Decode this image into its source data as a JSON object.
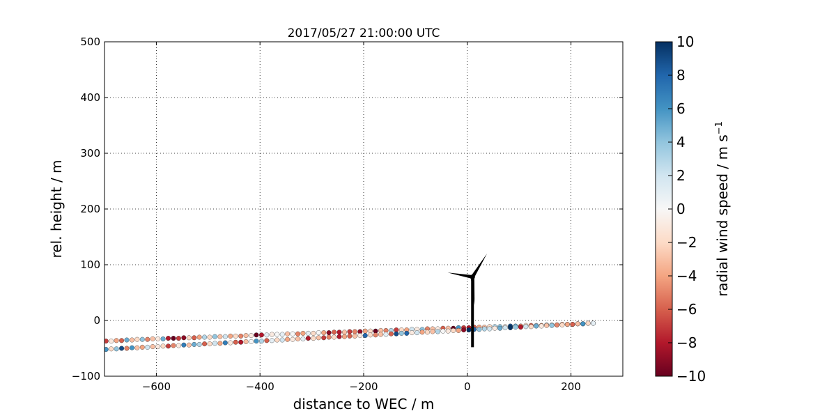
{
  "chart_data": {
    "type": "scatter",
    "title": "2017/05/27 21:00:00 UTC",
    "xlabel": "distance to WEC / m",
    "ylabel": "rel. height / m",
    "xlim": [
      -700,
      300
    ],
    "ylim": [
      -100,
      500
    ],
    "xticks": [
      -600,
      -400,
      -200,
      0,
      200
    ],
    "yticks": [
      -100,
      0,
      100,
      200,
      300,
      400,
      500
    ],
    "xtick_labels": [
      "−600",
      "−400",
      "−200",
      "0",
      "200"
    ],
    "ytick_labels": [
      "−100",
      "0",
      "100",
      "200",
      "300",
      "400",
      "500"
    ],
    "grid": true,
    "colorbar": {
      "label": "radial wind speed / m s",
      "label_superscript": "−1",
      "vmin": -10,
      "vmax": 10,
      "ticks": [
        10,
        8,
        6,
        4,
        2,
        0,
        -2,
        -4,
        -6,
        -8,
        -10
      ],
      "tick_labels": [
        "10",
        "8",
        "6",
        "4",
        "2",
        "0",
        "−2",
        "−4",
        "−6",
        "−8",
        "−10"
      ],
      "colormap": "RdBu"
    },
    "series": [
      {
        "points": [
          [
            -697,
            -37,
            -7
          ],
          [
            -687,
            -37,
            -1
          ],
          [
            -677,
            -36,
            -4
          ],
          [
            -667,
            -36,
            -6
          ],
          [
            -657,
            -35,
            5
          ],
          [
            -647,
            -35,
            -3
          ],
          [
            -637,
            -34,
            -2
          ],
          [
            -627,
            -34,
            4
          ],
          [
            -617,
            -34,
            -5
          ],
          [
            -607,
            -33,
            -3
          ],
          [
            -597,
            -33,
            -1
          ],
          [
            -587,
            -33,
            5
          ],
          [
            -577,
            -32,
            -8
          ],
          [
            -567,
            -32,
            -10
          ],
          [
            -557,
            -32,
            -7
          ],
          [
            -547,
            -31,
            -9
          ],
          [
            -537,
            -31,
            -2
          ],
          [
            -527,
            -31,
            -6
          ],
          [
            -517,
            -30,
            -4
          ],
          [
            -507,
            -30,
            3
          ],
          [
            -497,
            -30,
            -2
          ],
          [
            -487,
            -29,
            4
          ],
          [
            -477,
            -29,
            -3
          ],
          [
            -467,
            -29,
            2
          ],
          [
            -457,
            -28,
            -4
          ],
          [
            -447,
            -28,
            -2
          ],
          [
            -437,
            -28,
            -5
          ],
          [
            -427,
            -27,
            -3
          ],
          [
            -417,
            -27,
            -1
          ],
          [
            -407,
            -26,
            -10
          ],
          [
            -397,
            -26,
            -8
          ],
          [
            -387,
            -26,
            1
          ],
          [
            -377,
            -25,
            -1
          ],
          [
            -367,
            -25,
            0
          ],
          [
            -357,
            -25,
            1
          ],
          [
            -347,
            -24,
            -3
          ],
          [
            -337,
            -24,
            0
          ],
          [
            -327,
            -24,
            -5
          ],
          [
            -317,
            -23,
            -4
          ],
          [
            -307,
            -23,
            1
          ],
          [
            -297,
            -23,
            -2
          ],
          [
            -287,
            -22,
            0
          ],
          [
            -277,
            -22,
            -4
          ],
          [
            -267,
            -22,
            -9
          ],
          [
            -257,
            -21,
            -6
          ],
          [
            -247,
            -21,
            -8
          ],
          [
            -237,
            -21,
            -3
          ],
          [
            -227,
            -20,
            -7
          ],
          [
            -217,
            -20,
            -5
          ],
          [
            -207,
            -20,
            -9
          ],
          [
            -197,
            -19,
            -4
          ],
          [
            -187,
            -19,
            -2
          ],
          [
            -177,
            -19,
            -10
          ],
          [
            -167,
            -18,
            -3
          ],
          [
            -157,
            -18,
            -5
          ],
          [
            -147,
            -18,
            3
          ],
          [
            -137,
            -17,
            -7
          ],
          [
            -127,
            -17,
            -2
          ],
          [
            -117,
            -17,
            -4
          ],
          [
            -107,
            -16,
            2
          ],
          [
            -97,
            -16,
            -1
          ],
          [
            -87,
            -16,
            4
          ],
          [
            -77,
            -15,
            -5
          ],
          [
            -67,
            -15,
            -3
          ],
          [
            -57,
            -15,
            -1
          ],
          [
            -47,
            -14,
            -6
          ],
          [
            -37,
            -14,
            -3
          ],
          [
            -27,
            -14,
            -10
          ],
          [
            -17,
            -13,
            6
          ],
          [
            -7,
            -13,
            -7
          ],
          [
            3,
            -13,
            -8
          ],
          [
            13,
            -12,
            -6
          ],
          [
            23,
            -12,
            -4
          ],
          [
            33,
            -12,
            -3
          ],
          [
            43,
            -11,
            -2
          ],
          [
            53,
            -11,
            3
          ],
          [
            63,
            -11,
            4
          ],
          [
            73,
            -11,
            -1
          ],
          [
            83,
            -10,
            9
          ],
          [
            93,
            -10,
            5
          ],
          [
            103,
            -10,
            -5
          ],
          [
            113,
            -9,
            -2
          ],
          [
            123,
            -9,
            -6
          ],
          [
            133,
            -9,
            2
          ],
          [
            143,
            -9,
            -4
          ],
          [
            153,
            -8,
            3
          ],
          [
            163,
            -8,
            -1
          ],
          [
            173,
            -8,
            -2
          ],
          [
            183,
            -7,
            -4
          ],
          [
            193,
            -7,
            1
          ],
          [
            203,
            -7,
            -3
          ],
          [
            213,
            -6,
            -9
          ],
          [
            223,
            -6,
            3
          ],
          [
            233,
            -5,
            -1
          ],
          [
            243,
            -5,
            0
          ]
        ]
      },
      {
        "points": [
          [
            -697,
            -52,
            6
          ],
          [
            -687,
            -51,
            -2
          ],
          [
            -677,
            -51,
            4
          ],
          [
            -667,
            -50,
            9
          ],
          [
            -657,
            -50,
            -5
          ],
          [
            -647,
            -49,
            6
          ],
          [
            -637,
            -49,
            -3
          ],
          [
            -627,
            -48,
            -4
          ],
          [
            -617,
            -48,
            2
          ],
          [
            -607,
            -47,
            -3
          ],
          [
            -597,
            -47,
            -1
          ],
          [
            -587,
            -46,
            -2
          ],
          [
            -577,
            -46,
            -7
          ],
          [
            -567,
            -45,
            -5
          ],
          [
            -557,
            -45,
            -1
          ],
          [
            -547,
            -44,
            7
          ],
          [
            -537,
            -44,
            -3
          ],
          [
            -527,
            -43,
            5
          ],
          [
            -517,
            -43,
            3
          ],
          [
            -507,
            -42,
            -6
          ],
          [
            -497,
            -42,
            -2
          ],
          [
            -487,
            -41,
            2
          ],
          [
            -477,
            -41,
            -4
          ],
          [
            -467,
            -40,
            7
          ],
          [
            -457,
            -40,
            -1
          ],
          [
            -447,
            -39,
            -6
          ],
          [
            -437,
            -39,
            -8
          ],
          [
            -427,
            -38,
            -3
          ],
          [
            -417,
            -38,
            0
          ],
          [
            -407,
            -37,
            6
          ],
          [
            -397,
            -37,
            3
          ],
          [
            -387,
            -36,
            -6
          ],
          [
            -377,
            -36,
            1
          ],
          [
            -367,
            -35,
            -2
          ],
          [
            -357,
            -35,
            2
          ],
          [
            -347,
            -34,
            -4
          ],
          [
            -337,
            -34,
            -1
          ],
          [
            -327,
            -33,
            -3
          ],
          [
            -317,
            -33,
            1
          ],
          [
            -307,
            -32,
            -8
          ],
          [
            -297,
            -32,
            -2
          ],
          [
            -287,
            -31,
            -3
          ],
          [
            -277,
            -31,
            -7
          ],
          [
            -267,
            -30,
            -5
          ],
          [
            -257,
            -30,
            -2
          ],
          [
            -247,
            -29,
            -8
          ],
          [
            -237,
            -29,
            -4
          ],
          [
            -227,
            -28,
            -6
          ],
          [
            -217,
            -28,
            -3
          ],
          [
            -207,
            -27,
            -1
          ],
          [
            -197,
            -27,
            8
          ],
          [
            -187,
            -26,
            -2
          ],
          [
            -177,
            -26,
            -5
          ],
          [
            -167,
            -25,
            -3
          ],
          [
            -157,
            -25,
            1
          ],
          [
            -147,
            -24,
            -6
          ],
          [
            -137,
            -24,
            9
          ],
          [
            -127,
            -23,
            4
          ],
          [
            -117,
            -23,
            8
          ],
          [
            -107,
            -22,
            -1
          ],
          [
            -97,
            -22,
            2
          ],
          [
            -87,
            -21,
            -4
          ],
          [
            -77,
            -21,
            -2
          ],
          [
            -67,
            -20,
            -3
          ],
          [
            -57,
            -20,
            3
          ],
          [
            -47,
            -19,
            0
          ],
          [
            -37,
            -19,
            -1
          ],
          [
            -27,
            -18,
            -2
          ],
          [
            -17,
            -18,
            -4
          ],
          [
            -7,
            -17,
            -9
          ],
          [
            3,
            -17,
            10
          ],
          [
            13,
            -16,
            8
          ],
          [
            23,
            -16,
            4
          ],
          [
            33,
            -15,
            3
          ],
          [
            43,
            -15,
            2
          ],
          [
            53,
            -14,
            -1
          ],
          [
            63,
            -14,
            5
          ],
          [
            73,
            -13,
            2
          ],
          [
            83,
            -13,
            10
          ],
          [
            93,
            -12,
            4
          ],
          [
            103,
            -12,
            -8
          ],
          [
            113,
            -11,
            2
          ],
          [
            123,
            -11,
            -2
          ],
          [
            133,
            -10,
            5
          ],
          [
            143,
            -10,
            -1
          ],
          [
            153,
            -9,
            -3
          ],
          [
            163,
            -9,
            4
          ],
          [
            173,
            -8,
            -5
          ],
          [
            183,
            -8,
            -2
          ],
          [
            193,
            -7,
            -4
          ],
          [
            203,
            -7,
            -6
          ],
          [
            213,
            -6,
            -3
          ],
          [
            223,
            -6,
            6
          ],
          [
            233,
            -5,
            -2
          ],
          [
            243,
            -5,
            1
          ]
        ]
      }
    ],
    "turbine": {
      "hub": [
        10,
        78
      ],
      "tower_base": [
        10,
        -48
      ],
      "blade_tips": [
        [
          -38,
          86
        ],
        [
          38,
          120
        ],
        [
          14,
          28
        ]
      ]
    }
  }
}
